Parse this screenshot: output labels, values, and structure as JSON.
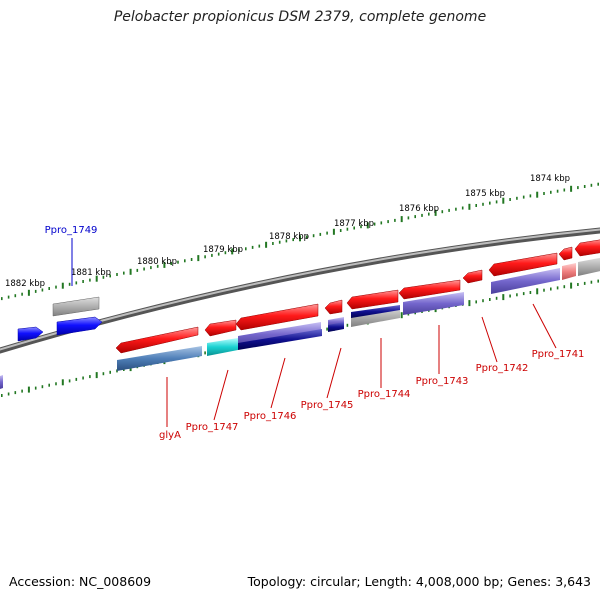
{
  "title": "Pelobacter propionicus DSM 2379, complete genome",
  "footer": {
    "accession": "Accession: NC_008609",
    "summary": "Topology: circular; Length: 4,008,000 bp; Genes: 3,643"
  },
  "colors": {
    "forward_gene": "#ee0000",
    "reverse_gene": "#0000ee",
    "label_red": "#cc0000",
    "label_blue": "#0000cc",
    "tick_green": "#227722",
    "backbone": "#808080"
  },
  "ruler_labels": [
    "1874 kbp",
    "1875 kbp",
    "1876 kbp",
    "1877 kbp",
    "1878 kbp",
    "1879 kbp",
    "1880 kbp",
    "1881 kbp",
    "1882 kbp"
  ],
  "gene_labels": [
    {
      "name": "Ppro_1749",
      "color": "blue"
    },
    {
      "name": "glyA",
      "color": "red"
    },
    {
      "name": "Ppro_1747",
      "color": "red"
    },
    {
      "name": "Ppro_1746",
      "color": "red"
    },
    {
      "name": "Ppro_1745",
      "color": "red"
    },
    {
      "name": "Ppro_1744",
      "color": "red"
    },
    {
      "name": "Ppro_1743",
      "color": "red"
    },
    {
      "name": "Ppro_1742",
      "color": "red"
    },
    {
      "name": "Ppro_1741",
      "color": "red"
    }
  ]
}
